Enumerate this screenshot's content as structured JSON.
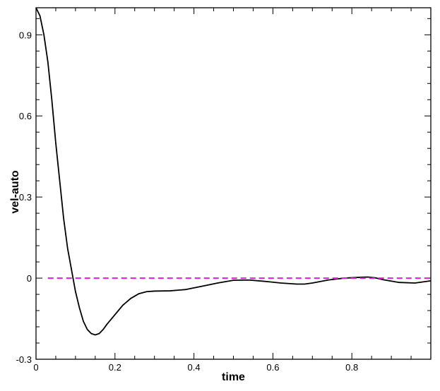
{
  "chart_data": {
    "type": "line",
    "title": "",
    "xlabel": "time",
    "ylabel": "vel-auto",
    "xlim": [
      0,
      1.0
    ],
    "ylim": [
      -0.3,
      1.0
    ],
    "grid": false,
    "legend": "none",
    "x_ticks": [
      0,
      0.2,
      0.4,
      0.6,
      0.8
    ],
    "x_tick_labels": [
      "0",
      "0.2",
      "0.4",
      "0.6",
      "0.8"
    ],
    "y_ticks": [
      -0.3,
      0,
      0.3,
      0.6,
      0.9
    ],
    "y_tick_labels": [
      "-0.3",
      "0",
      "0.3",
      "0.6",
      "0.9"
    ],
    "series": [
      {
        "style": "solid",
        "color": "#000000",
        "x": [
          0,
          0.01,
          0.02,
          0.03,
          0.04,
          0.05,
          0.06,
          0.07,
          0.08,
          0.09,
          0.1,
          0.11,
          0.12,
          0.13,
          0.14,
          0.15,
          0.16,
          0.17,
          0.18,
          0.2,
          0.22,
          0.24,
          0.26,
          0.28,
          0.3,
          0.34,
          0.38,
          0.42,
          0.46,
          0.5,
          0.54,
          0.58,
          0.62,
          0.66,
          0.68,
          0.7,
          0.74,
          0.78,
          0.82,
          0.84,
          0.86,
          0.88,
          0.92,
          0.96,
          1.0
        ],
        "y": [
          1.0,
          0.97,
          0.9,
          0.8,
          0.66,
          0.5,
          0.36,
          0.22,
          0.11,
          0.03,
          -0.05,
          -0.11,
          -0.16,
          -0.19,
          -0.205,
          -0.21,
          -0.205,
          -0.19,
          -0.17,
          -0.135,
          -0.1,
          -0.075,
          -0.058,
          -0.05,
          -0.048,
          -0.047,
          -0.042,
          -0.03,
          -0.018,
          -0.008,
          -0.007,
          -0.012,
          -0.018,
          -0.022,
          -0.022,
          -0.018,
          -0.007,
          0.0,
          0.003,
          0.004,
          0.001,
          -0.006,
          -0.016,
          -0.018,
          -0.01
        ]
      },
      {
        "style": "dashed",
        "color": "#e11ee1",
        "x": [
          0.03,
          1.0
        ],
        "y": [
          0,
          0
        ]
      }
    ]
  }
}
